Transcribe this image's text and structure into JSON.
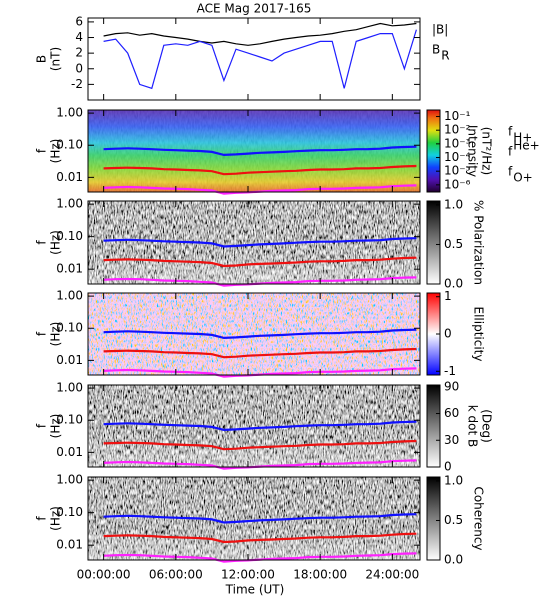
{
  "chart_data": [
    {
      "type": "line",
      "title": "ACE Mag 2017-165",
      "ylabel": [
        "B",
        "(nT)"
      ],
      "xlim": [
        -1.3,
        26.3
      ],
      "xticks": [
        {
          "value": 0,
          "label": "00:00:00"
        },
        {
          "value": 6,
          "label": "06:00:00"
        },
        {
          "value": 12,
          "label": "12:00:00"
        },
        {
          "value": 18,
          "label": "18:00:00"
        },
        {
          "value": 24,
          "label": "24:00:00"
        }
      ],
      "ylim": [
        -4,
        6.5
      ],
      "yticks": [
        -2,
        0,
        2,
        4,
        6
      ],
      "x": [
        0,
        1,
        2,
        3,
        4,
        5,
        6,
        7,
        8,
        9,
        10,
        11,
        12,
        13,
        14,
        15,
        16,
        17,
        18,
        19,
        20,
        21,
        22,
        23,
        24,
        25,
        26
      ],
      "series": [
        {
          "name": "|B|",
          "color": "#000000",
          "values": [
            4.2,
            4.5,
            4.6,
            4.3,
            4.5,
            4.2,
            4.0,
            3.8,
            3.5,
            3.3,
            3.5,
            3.2,
            3.0,
            3.2,
            3.5,
            3.8,
            4.0,
            4.2,
            4.3,
            4.5,
            4.8,
            5.0,
            5.4,
            5.8,
            5.5,
            5.6,
            5.8
          ]
        },
        {
          "name": "B",
          "name_sub": "R",
          "color": "#1f1fff",
          "values": [
            3.5,
            3.8,
            2.0,
            -2.0,
            -2.5,
            3.0,
            3.2,
            3.0,
            3.5,
            3.0,
            -1.5,
            2.5,
            2.0,
            1.5,
            1.0,
            2.0,
            2.5,
            3.0,
            3.5,
            3.5,
            -2.5,
            3.5,
            4.0,
            4.5,
            4.5,
            0.0,
            5.0
          ]
        }
      ]
    },
    {
      "type": "spectrogram",
      "colormap": "rainbow",
      "ylabel": [
        "f",
        "(Hz)"
      ],
      "ylog": true,
      "xlim": [
        -1.3,
        26.3
      ],
      "xticks": [
        {
          "value": 0,
          "label": "00:00:00"
        },
        {
          "value": 6,
          "label": "06:00:00"
        },
        {
          "value": 12,
          "label": "12:00:00"
        },
        {
          "value": 18,
          "label": "18:00:00"
        },
        {
          "value": 24,
          "label": "24:00:00"
        }
      ],
      "ylim": [
        0.0035,
        1.25
      ],
      "yticks": [
        {
          "value": 1,
          "label": "1.00"
        },
        {
          "value": 0.1,
          "label": "0.10"
        },
        {
          "value": 0.01,
          "label": "0.01"
        }
      ],
      "clabel": [
        "Intensity",
        "(nT²/Hz)"
      ],
      "clog": true,
      "clim": [
        3e-07,
        0.3
      ],
      "cticks": [
        {
          "value": 0.1,
          "label": "10⁻¹"
        },
        {
          "value": 0.01,
          "label": "10⁻²"
        },
        {
          "value": 0.001,
          "label": "10⁻³"
        },
        {
          "value": 0.0001,
          "label": "10⁻⁴"
        },
        {
          "value": 1e-05,
          "label": "10⁻⁵"
        },
        {
          "value": 1e-06,
          "label": "10⁻⁶"
        }
      ],
      "x": [
        0,
        1,
        2,
        3,
        4,
        5,
        6,
        7,
        8,
        9,
        10,
        11,
        12,
        13,
        14,
        15,
        16,
        17,
        18,
        19,
        20,
        21,
        22,
        23,
        24,
        25,
        26
      ],
      "series": [
        {
          "name": "f",
          "name_sub": "H+",
          "color": "#1010ff",
          "values": [
            0.075,
            0.078,
            0.08,
            0.078,
            0.075,
            0.072,
            0.07,
            0.068,
            0.066,
            0.062,
            0.05,
            0.052,
            0.055,
            0.058,
            0.06,
            0.062,
            0.065,
            0.068,
            0.07,
            0.07,
            0.072,
            0.075,
            0.076,
            0.078,
            0.085,
            0.088,
            0.09
          ]
        },
        {
          "name": "f",
          "name_sup": "He+",
          "color": "#ee1010",
          "values": [
            0.019,
            0.0195,
            0.02,
            0.0195,
            0.019,
            0.018,
            0.0175,
            0.017,
            0.0165,
            0.0155,
            0.0125,
            0.013,
            0.014,
            0.0145,
            0.015,
            0.0155,
            0.016,
            0.017,
            0.0175,
            0.0175,
            0.018,
            0.019,
            0.019,
            0.0195,
            0.021,
            0.022,
            0.0225
          ]
        },
        {
          "name": "f",
          "name_sub": "O+",
          "color": "#ff20ff",
          "values": [
            0.0047,
            0.0049,
            0.005,
            0.0049,
            0.0047,
            0.0045,
            0.0044,
            0.0043,
            0.0041,
            0.0039,
            0.0031,
            0.0033,
            0.0034,
            0.0036,
            0.0038,
            0.0039,
            0.004,
            0.0043,
            0.0044,
            0.0044,
            0.0045,
            0.0047,
            0.0048,
            0.0049,
            0.0053,
            0.0055,
            0.0056
          ]
        }
      ]
    },
    {
      "type": "spectrogram",
      "colormap": "gray",
      "ylabel": [
        "f",
        "(Hz)"
      ],
      "ylog": true,
      "xlim": [
        -1.3,
        26.3
      ],
      "xticks": [
        {
          "value": 0,
          "label": "00:00:00"
        },
        {
          "value": 6,
          "label": "06:00:00"
        },
        {
          "value": 12,
          "label": "12:00:00"
        },
        {
          "value": 18,
          "label": "18:00:00"
        },
        {
          "value": 24,
          "label": "24:00:00"
        }
      ],
      "ylim": [
        0.0035,
        1.25
      ],
      "yticks": [
        {
          "value": 1,
          "label": "1.00"
        },
        {
          "value": 0.1,
          "label": "0.10"
        },
        {
          "value": 0.01,
          "label": "0.01"
        }
      ],
      "clabel": [
        "% Polarization"
      ],
      "clim": [
        0,
        1.05
      ],
      "cticks": [
        {
          "value": 0,
          "label": "0.0"
        },
        {
          "value": 0.5,
          "label": "0.5"
        },
        {
          "value": 1,
          "label": "1.0"
        }
      ],
      "x": [
        0,
        1,
        2,
        3,
        4,
        5,
        6,
        7,
        8,
        9,
        10,
        11,
        12,
        13,
        14,
        15,
        16,
        17,
        18,
        19,
        20,
        21,
        22,
        23,
        24,
        25,
        26
      ],
      "series": [
        {
          "color": "#1010ff",
          "values": [
            0.075,
            0.078,
            0.08,
            0.078,
            0.075,
            0.072,
            0.07,
            0.068,
            0.066,
            0.062,
            0.05,
            0.052,
            0.055,
            0.058,
            0.06,
            0.062,
            0.065,
            0.068,
            0.07,
            0.07,
            0.072,
            0.075,
            0.076,
            0.078,
            0.085,
            0.088,
            0.09
          ]
        },
        {
          "color": "#ee1010",
          "values": [
            0.019,
            0.0195,
            0.02,
            0.0195,
            0.019,
            0.018,
            0.0175,
            0.017,
            0.0165,
            0.0155,
            0.0125,
            0.013,
            0.014,
            0.0145,
            0.015,
            0.0155,
            0.016,
            0.017,
            0.0175,
            0.0175,
            0.018,
            0.019,
            0.019,
            0.0195,
            0.021,
            0.022,
            0.0225
          ]
        },
        {
          "color": "#ff20ff",
          "values": [
            0.0047,
            0.0049,
            0.005,
            0.0049,
            0.0047,
            0.0045,
            0.0044,
            0.0043,
            0.0041,
            0.0039,
            0.0031,
            0.0033,
            0.0034,
            0.0036,
            0.0038,
            0.0039,
            0.004,
            0.0043,
            0.0044,
            0.0044,
            0.0045,
            0.0047,
            0.0048,
            0.0049,
            0.0053,
            0.0055,
            0.0056
          ]
        }
      ]
    },
    {
      "type": "spectrogram",
      "colormap": "bwr",
      "ylabel": [
        "f",
        "(Hz)"
      ],
      "ylog": true,
      "xlim": [
        -1.3,
        26.3
      ],
      "xticks": [
        {
          "value": 0,
          "label": "00:00:00"
        },
        {
          "value": 6,
          "label": "06:00:00"
        },
        {
          "value": 12,
          "label": "12:00:00"
        },
        {
          "value": 18,
          "label": "18:00:00"
        },
        {
          "value": 24,
          "label": "24:00:00"
        }
      ],
      "ylim": [
        0.0035,
        1.25
      ],
      "yticks": [
        {
          "value": 1,
          "label": "1.00"
        },
        {
          "value": 0.1,
          "label": "0.10"
        },
        {
          "value": 0.01,
          "label": "0.01"
        }
      ],
      "clabel": [
        "Ellipticity"
      ],
      "clim": [
        -1.1,
        1.1
      ],
      "cticks": [
        -1,
        0,
        1
      ],
      "x": [
        0,
        1,
        2,
        3,
        4,
        5,
        6,
        7,
        8,
        9,
        10,
        11,
        12,
        13,
        14,
        15,
        16,
        17,
        18,
        19,
        20,
        21,
        22,
        23,
        24,
        25,
        26
      ],
      "series": [
        {
          "color": "#1010ff",
          "values": [
            0.075,
            0.078,
            0.08,
            0.078,
            0.075,
            0.072,
            0.07,
            0.068,
            0.066,
            0.062,
            0.05,
            0.052,
            0.055,
            0.058,
            0.06,
            0.062,
            0.065,
            0.068,
            0.07,
            0.07,
            0.072,
            0.075,
            0.076,
            0.078,
            0.085,
            0.088,
            0.09
          ]
        },
        {
          "color": "#ee1010",
          "values": [
            0.019,
            0.0195,
            0.02,
            0.0195,
            0.019,
            0.018,
            0.0175,
            0.017,
            0.0165,
            0.0155,
            0.0125,
            0.013,
            0.014,
            0.0145,
            0.015,
            0.0155,
            0.016,
            0.017,
            0.0175,
            0.0175,
            0.018,
            0.019,
            0.019,
            0.0195,
            0.021,
            0.022,
            0.0225
          ]
        },
        {
          "color": "#ff20ff",
          "values": [
            0.0047,
            0.0049,
            0.005,
            0.0049,
            0.0047,
            0.0045,
            0.0044,
            0.0043,
            0.0041,
            0.0039,
            0.0031,
            0.0033,
            0.0034,
            0.0036,
            0.0038,
            0.0039,
            0.004,
            0.0043,
            0.0044,
            0.0044,
            0.0045,
            0.0047,
            0.0048,
            0.0049,
            0.0053,
            0.0055,
            0.0056
          ]
        }
      ]
    },
    {
      "type": "spectrogram",
      "colormap": "gray",
      "ylabel": [
        "f",
        "(Hz)"
      ],
      "ylog": true,
      "xlim": [
        -1.3,
        26.3
      ],
      "xticks": [
        {
          "value": 0,
          "label": "00:00:00"
        },
        {
          "value": 6,
          "label": "06:00:00"
        },
        {
          "value": 12,
          "label": "12:00:00"
        },
        {
          "value": 18,
          "label": "18:00:00"
        },
        {
          "value": 24,
          "label": "24:00:00"
        }
      ],
      "ylim": [
        0.0035,
        1.25
      ],
      "yticks": [
        {
          "value": 1,
          "label": "1.00"
        },
        {
          "value": 0.1,
          "label": "0.10"
        },
        {
          "value": 0.01,
          "label": "0.01"
        }
      ],
      "clabel": [
        "k dot B",
        "(Deg)"
      ],
      "clim": [
        0,
        92
      ],
      "cticks": [
        0,
        30,
        60,
        90
      ],
      "x": [
        0,
        1,
        2,
        3,
        4,
        5,
        6,
        7,
        8,
        9,
        10,
        11,
        12,
        13,
        14,
        15,
        16,
        17,
        18,
        19,
        20,
        21,
        22,
        23,
        24,
        25,
        26
      ],
      "series": [
        {
          "color": "#1010ff",
          "values": [
            0.075,
            0.078,
            0.08,
            0.078,
            0.075,
            0.072,
            0.07,
            0.068,
            0.066,
            0.062,
            0.05,
            0.052,
            0.055,
            0.058,
            0.06,
            0.062,
            0.065,
            0.068,
            0.07,
            0.07,
            0.072,
            0.075,
            0.076,
            0.078,
            0.085,
            0.088,
            0.09
          ]
        },
        {
          "color": "#ee1010",
          "values": [
            0.019,
            0.0195,
            0.02,
            0.0195,
            0.019,
            0.018,
            0.0175,
            0.017,
            0.0165,
            0.0155,
            0.0125,
            0.013,
            0.014,
            0.0145,
            0.015,
            0.0155,
            0.016,
            0.017,
            0.0175,
            0.0175,
            0.018,
            0.019,
            0.019,
            0.0195,
            0.021,
            0.022,
            0.0225
          ]
        },
        {
          "color": "#ff20ff",
          "values": [
            0.0047,
            0.0049,
            0.005,
            0.0049,
            0.0047,
            0.0045,
            0.0044,
            0.0043,
            0.0041,
            0.0039,
            0.0031,
            0.0033,
            0.0034,
            0.0036,
            0.0038,
            0.0039,
            0.004,
            0.0043,
            0.0044,
            0.0044,
            0.0045,
            0.0047,
            0.0048,
            0.0049,
            0.0053,
            0.0055,
            0.0056
          ]
        }
      ]
    },
    {
      "type": "spectrogram",
      "colormap": "gray",
      "ylabel": [
        "f",
        "(Hz)"
      ],
      "ylog": true,
      "xlabel": "Time (UT)",
      "xlim": [
        -1.3,
        26.3
      ],
      "xticks": [
        {
          "value": 0,
          "label": "00:00:00"
        },
        {
          "value": 6,
          "label": "06:00:00"
        },
        {
          "value": 12,
          "label": "12:00:00"
        },
        {
          "value": 18,
          "label": "18:00:00"
        },
        {
          "value": 24,
          "label": "24:00:00"
        }
      ],
      "ylim": [
        0.0035,
        1.25
      ],
      "yticks": [
        {
          "value": 1,
          "label": "1.00"
        },
        {
          "value": 0.1,
          "label": "0.10"
        },
        {
          "value": 0.01,
          "label": "0.01"
        }
      ],
      "clabel": [
        "Coherency"
      ],
      "clim": [
        0,
        1.05
      ],
      "cticks": [
        {
          "value": 0,
          "label": "0.0"
        },
        {
          "value": 0.5,
          "label": "0.5"
        },
        {
          "value": 1,
          "label": "1.0"
        }
      ],
      "x": [
        0,
        1,
        2,
        3,
        4,
        5,
        6,
        7,
        8,
        9,
        10,
        11,
        12,
        13,
        14,
        15,
        16,
        17,
        18,
        19,
        20,
        21,
        22,
        23,
        24,
        25,
        26
      ],
      "series": [
        {
          "color": "#1010ff",
          "values": [
            0.075,
            0.078,
            0.08,
            0.078,
            0.075,
            0.072,
            0.07,
            0.068,
            0.066,
            0.062,
            0.05,
            0.052,
            0.055,
            0.058,
            0.06,
            0.062,
            0.065,
            0.068,
            0.07,
            0.07,
            0.072,
            0.075,
            0.076,
            0.078,
            0.085,
            0.088,
            0.09
          ]
        },
        {
          "color": "#ee1010",
          "values": [
            0.019,
            0.0195,
            0.02,
            0.0195,
            0.019,
            0.018,
            0.0175,
            0.017,
            0.0165,
            0.0155,
            0.0125,
            0.013,
            0.014,
            0.0145,
            0.015,
            0.0155,
            0.016,
            0.017,
            0.0175,
            0.0175,
            0.018,
            0.019,
            0.019,
            0.0195,
            0.021,
            0.022,
            0.0225
          ]
        },
        {
          "color": "#ff20ff",
          "values": [
            0.0047,
            0.0049,
            0.005,
            0.0049,
            0.0047,
            0.0045,
            0.0044,
            0.0043,
            0.0041,
            0.0039,
            0.0031,
            0.0033,
            0.0034,
            0.0036,
            0.0038,
            0.0039,
            0.004,
            0.0043,
            0.0044,
            0.0044,
            0.0045,
            0.0047,
            0.0048,
            0.0049,
            0.0053,
            0.0055,
            0.0056
          ]
        }
      ]
    }
  ]
}
